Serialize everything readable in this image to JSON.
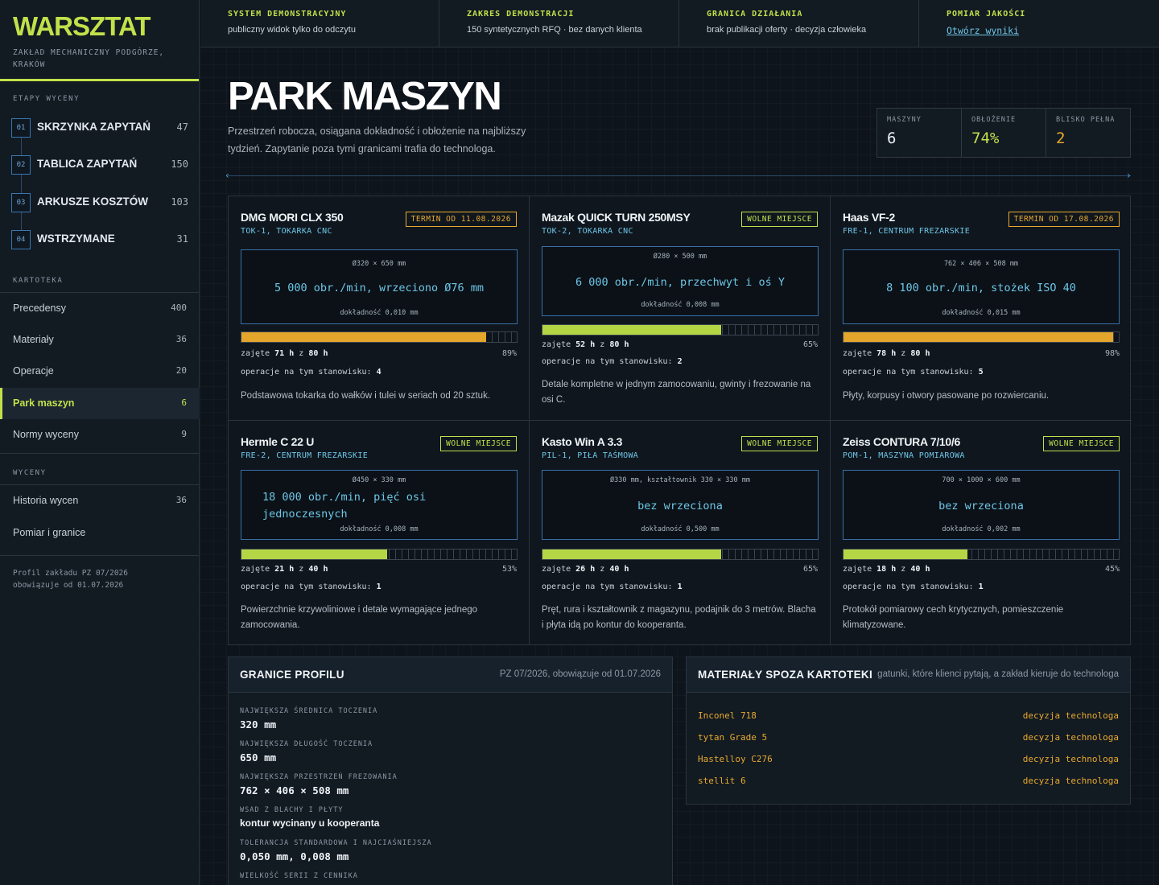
{
  "sidebar": {
    "logo": "WARSZTAT",
    "subtitle": "ZAKŁAD MECHANICZNY PODGÓRZE, KRAKÓW",
    "stages_title": "ETAPY WYCENY",
    "stages": [
      {
        "num": "01",
        "label": "SKRZYNKA ZAPYTAŃ",
        "count": "47"
      },
      {
        "num": "02",
        "label": "TABLICA ZAPYTAŃ",
        "count": "150"
      },
      {
        "num": "03",
        "label": "ARKUSZE KOSZTÓW",
        "count": "103"
      },
      {
        "num": "04",
        "label": "WSTRZYMANE",
        "count": "31"
      }
    ],
    "catalog_title": "KARTOTEKA",
    "catalog": [
      {
        "label": "Precedensy",
        "count": "400"
      },
      {
        "label": "Materiały",
        "count": "36"
      },
      {
        "label": "Operacje",
        "count": "20"
      },
      {
        "label": "Park maszyn",
        "count": "6"
      },
      {
        "label": "Normy wyceny",
        "count": "9"
      }
    ],
    "quotes_title": "WYCENY",
    "quotes": [
      {
        "label": "Historia wycen",
        "count": "36"
      },
      {
        "label": "Pomiar i granice",
        "count": ""
      }
    ],
    "profile_line1": "Profil zakładu PZ 07/2026",
    "profile_line2": "obowiązuje od 01.07.2026"
  },
  "topbar": [
    {
      "title": "SYSTEM DEMONSTRACYJNY",
      "text": "publiczny widok tylko do odczytu"
    },
    {
      "title": "ZAKRES DEMONSTRACJI",
      "text": "150 syntetycznych RFQ · bez danych klienta"
    },
    {
      "title": "GRANICA DZIAŁANIA",
      "text": "brak publikacji oferty · decyzja człowieka"
    },
    {
      "title": "POMIAR JAKOŚCI",
      "text": "Otwórz wyniki"
    }
  ],
  "page": {
    "title": "PARK MASZYN",
    "intro": "Przestrzeń robocza, osiągana dokładność i obłożenie na najbliższy tydzień. Zapytanie poza tymi granicami trafia do technologa."
  },
  "stats": [
    {
      "label": "MASZYNY",
      "value": "6",
      "color": "#e8eef3"
    },
    {
      "label": "OBŁOŻENIE",
      "value": "74%",
      "color": "#c2e04a"
    },
    {
      "label": "BLISKO PEŁNA",
      "value": "2",
      "color": "#e8a92e"
    }
  ],
  "machines": [
    {
      "name": "DMG MORI CLX 350",
      "code": "TOK-1, TOKARKA CNC",
      "badge": "TERMIN OD 11.08.2026",
      "badge_type": "term",
      "dims": "Ø320 × 650 mm",
      "spindle": "5 000 obr./min, wrzeciono Ø76 mm",
      "accuracy": "dokładność 0,010 mm",
      "used_h": "71",
      "total_h": "80",
      "percent": "89%",
      "load_fraction": 0.89,
      "bar_color": "#e3a52c",
      "ops_label": "operacje na tym stanowisku:",
      "ops": "4",
      "desc": "Podstawowa tokarka do wałków i tulei w seriach od 20 sztuk."
    },
    {
      "name": "Mazak QUICK TURN 250MSY",
      "code": "TOK-2, TOKARKA CNC",
      "badge": "WOLNE MIEJSCE",
      "badge_type": "free",
      "dims": "Ø280 × 500 mm",
      "spindle": "6 000 obr./min, przechwyt i oś Y",
      "accuracy": "dokładność 0,008 mm",
      "used_h": "52",
      "total_h": "80",
      "percent": "65%",
      "load_fraction": 0.65,
      "bar_color": "#b4d645",
      "ops_label": "operacje na tym stanowisku:",
      "ops": "2",
      "desc": "Detale kompletne w jednym zamocowaniu, gwinty i frezowanie na osi C."
    },
    {
      "name": "Haas VF-2",
      "code": "FRE-1, CENTRUM FREZARSKIE",
      "badge": "TERMIN OD 17.08.2026",
      "badge_type": "term",
      "dims": "762 × 406 × 508 mm",
      "spindle": "8 100 obr./min, stożek ISO 40",
      "accuracy": "dokładność 0,015 mm",
      "used_h": "78",
      "total_h": "80",
      "percent": "98%",
      "load_fraction": 0.98,
      "bar_color": "#e3a52c",
      "ops_label": "operacje na tym stanowisku:",
      "ops": "5",
      "desc": "Płyty, korpusy i otwory pasowane po rozwiercaniu."
    },
    {
      "name": "Hermle C 22 U",
      "code": "FRE-2, CENTRUM FREZARSKIE",
      "badge": "WOLNE MIEJSCE",
      "badge_type": "free",
      "dims": "Ø450 × 330 mm",
      "spindle": "18 000 obr./min, pięć osi jednoczesnych",
      "accuracy": "dokładność 0,008 mm",
      "used_h": "21",
      "total_h": "40",
      "percent": "53%",
      "load_fraction": 0.53,
      "bar_color": "#b4d645",
      "ops_label": "operacje na tym stanowisku:",
      "ops": "1",
      "desc": "Powierzchnie krzywoliniowe i detale wymagające jednego zamocowania."
    },
    {
      "name": "Kasto Win A 3.3",
      "code": "PIL-1, PIŁA TAŚMOWA",
      "badge": "WOLNE MIEJSCE",
      "badge_type": "free",
      "dims": "Ø330 mm, kształtownik 330 × 330 mm",
      "spindle": "bez wrzeciona",
      "accuracy": "dokładność 0,500 mm",
      "used_h": "26",
      "total_h": "40",
      "percent": "65%",
      "load_fraction": 0.65,
      "bar_color": "#b4d645",
      "ops_label": "operacje na tym stanowisku:",
      "ops": "1",
      "desc": "Pręt, rura i kształtownik z magazynu, podajnik do 3 metrów. Blacha i płyta idą po kontur do kooperanta."
    },
    {
      "name": "Zeiss CONTURA 7/10/6",
      "code": "POM-1, MASZYNA POMIAROWA",
      "badge": "WOLNE MIEJSCE",
      "badge_type": "free",
      "dims": "700 × 1000 × 600 mm",
      "spindle": "bez wrzeciona",
      "accuracy": "dokładność 0,002 mm",
      "used_h": "18",
      "total_h": "40",
      "percent": "45%",
      "load_fraction": 0.45,
      "bar_color": "#b4d645",
      "ops_label": "operacje na tym stanowisku:",
      "ops": "1",
      "desc": "Protokół pomiarowy cech krytycznych, pomieszczenie klimatyzowane."
    }
  ],
  "load_words": {
    "used": "zajęte",
    "of": "z",
    "unit": "h"
  },
  "limits": {
    "title": "GRANICE PROFILU",
    "meta": "PZ 07/2026, obowiązuje od 01.07.2026",
    "items": [
      {
        "label": "NAJWIĘKSZA ŚREDNICA TOCZENIA",
        "value": "320 mm"
      },
      {
        "label": "NAJWIĘKSZA DŁUGOŚĆ TOCZENIA",
        "value": "650 mm"
      },
      {
        "label": "NAJWIĘKSZA PRZESTRZEŃ FREZOWANIA",
        "value": "762 × 406 × 508 mm"
      },
      {
        "label": "WSAD Z BLACHY I PŁYTY",
        "value": "kontur wycinany u kooperanta"
      },
      {
        "label": "TOLERANCJA STANDARDOWA I NAJCIAŚNIEJSZA",
        "value": "0,050 mm, 0,008 mm"
      },
      {
        "label": "WIELKOŚĆ SERII Z CENNIKA",
        "value": ""
      }
    ]
  },
  "materials": {
    "title": "MATERIAŁY SPOZA KARTOTEKI",
    "meta": "gatunki, które klienci pytają, a zakład kieruje do technologa",
    "items": [
      {
        "name": "Inconel 718",
        "decision": "decyzja technologa"
      },
      {
        "name": "tytan Grade 5",
        "decision": "decyzja technologa"
      },
      {
        "name": "Hastelloy C276",
        "decision": "decyzja technologa"
      },
      {
        "name": "stellit 6",
        "decision": "decyzja technologa"
      }
    ]
  }
}
